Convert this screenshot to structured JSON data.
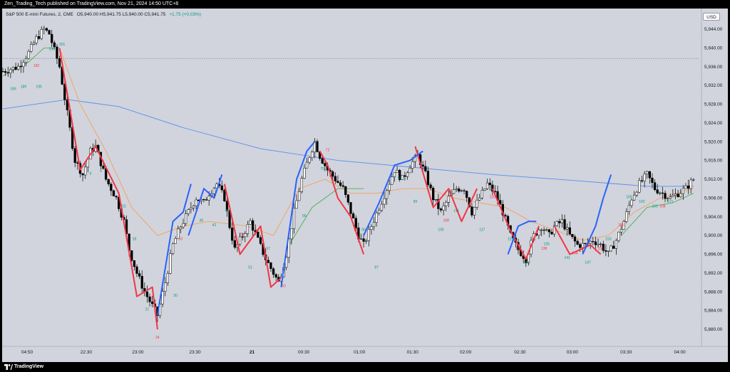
{
  "header": {
    "published": "Zen_Trading_Tech published on TradingView.com, Nov 21, 2024 14:50 UTC+8"
  },
  "symbol": {
    "name": "S&P 500 E-mini Futures, 2, CME",
    "open": "O5,940.00",
    "high": "H5,941.75",
    "low": "L5,940.00",
    "close": "C5,941.75",
    "change": "+1.75 (+0.03%)"
  },
  "currency": "USD",
  "footer": {
    "brand": "TradingView"
  },
  "colors": {
    "up": "#ffffff",
    "down": "#000000",
    "ema_long": "#5b8cf0",
    "ema_mid": "#f5a05a",
    "ema_short": "#4caf50",
    "zig_up": "#2962ff",
    "zig_down": "#f23645",
    "label_green": "#089981",
    "label_red": "#f23645"
  },
  "chart_data": {
    "type": "candlestick",
    "title": "",
    "xlabel": "",
    "ylabel": "",
    "ylim": [
      5877,
      5947
    ],
    "yticks": [
      "5,944.00",
      "5,940.00",
      "5,936.00",
      "5,932.00",
      "5,928.00",
      "5,924.00",
      "5,920.00",
      "5,916.00",
      "5,912.00",
      "5,908.00",
      "5,904.00",
      "5,900.00",
      "5,896.00",
      "5,892.00",
      "5,888.00",
      "5,884.00",
      "5,880.00"
    ],
    "xticks": [
      "04:50",
      "22:30",
      "23:00",
      "23:30",
      "21",
      "00:30",
      "01:00",
      "01:30",
      "02:00",
      "02:30",
      "03:00",
      "03:30",
      "04:00"
    ],
    "dotted_level": 5937.75,
    "close_path": [
      [
        0,
        5935
      ],
      [
        6,
        5936
      ],
      [
        10,
        5939
      ],
      [
        13,
        5942
      ],
      [
        16,
        5944
      ],
      [
        18,
        5943
      ],
      [
        22,
        5936
      ],
      [
        25,
        5926
      ],
      [
        28,
        5916
      ],
      [
        31,
        5913
      ],
      [
        34,
        5918
      ],
      [
        36,
        5919
      ],
      [
        40,
        5912
      ],
      [
        44,
        5908
      ],
      [
        47,
        5903
      ],
      [
        49,
        5897
      ],
      [
        52,
        5892
      ],
      [
        55,
        5888
      ],
      [
        58,
        5885
      ],
      [
        60,
        5883
      ],
      [
        63,
        5890
      ],
      [
        66,
        5898
      ],
      [
        69,
        5902
      ],
      [
        72,
        5905
      ],
      [
        75,
        5908
      ],
      [
        78,
        5907
      ],
      [
        80,
        5909
      ],
      [
        83,
        5911
      ],
      [
        86,
        5908
      ],
      [
        88,
        5902
      ],
      [
        90,
        5897
      ],
      [
        93,
        5900
      ],
      [
        96,
        5903
      ],
      [
        99,
        5899
      ],
      [
        102,
        5895
      ],
      [
        105,
        5892
      ],
      [
        107,
        5890
      ],
      [
        110,
        5896
      ],
      [
        113,
        5905
      ],
      [
        116,
        5912
      ],
      [
        119,
        5917
      ],
      [
        121,
        5920
      ],
      [
        123,
        5917
      ],
      [
        126,
        5914
      ],
      [
        129,
        5912
      ],
      [
        132,
        5910
      ],
      [
        135,
        5905
      ],
      [
        138,
        5900
      ],
      [
        140,
        5898
      ],
      [
        143,
        5902
      ],
      [
        146,
        5906
      ],
      [
        149,
        5910
      ],
      [
        152,
        5914
      ],
      [
        155,
        5912
      ],
      [
        158,
        5915
      ],
      [
        161,
        5917
      ],
      [
        164,
        5913
      ],
      [
        167,
        5908
      ],
      [
        170,
        5905
      ],
      [
        173,
        5908
      ],
      [
        176,
        5910
      ],
      [
        179,
        5910
      ],
      [
        182,
        5905
      ],
      [
        185,
        5908
      ],
      [
        188,
        5911
      ],
      [
        191,
        5909
      ],
      [
        194,
        5905
      ],
      [
        197,
        5900
      ],
      [
        200,
        5897
      ],
      [
        203,
        5895
      ],
      [
        206,
        5900
      ],
      [
        209,
        5902
      ],
      [
        212,
        5900
      ],
      [
        214,
        5902
      ],
      [
        217,
        5903
      ],
      [
        220,
        5900
      ],
      [
        223,
        5898
      ],
      [
        226,
        5898
      ],
      [
        229,
        5899
      ],
      [
        232,
        5898
      ],
      [
        235,
        5896
      ],
      [
        238,
        5899
      ],
      [
        241,
        5903
      ],
      [
        244,
        5908
      ],
      [
        247,
        5911
      ],
      [
        250,
        5913
      ],
      [
        253,
        5910
      ],
      [
        256,
        5909
      ],
      [
        259,
        5908
      ],
      [
        262,
        5909
      ],
      [
        265,
        5910
      ],
      [
        268,
        5912
      ]
    ],
    "series": [
      {
        "name": "",
        "values": [
          [
            0,
            5927
          ],
          [
            25,
            5929
          ],
          [
            45,
            5927.5
          ],
          [
            70,
            5923
          ],
          [
            100,
            5918.5
          ],
          [
            130,
            5916
          ],
          [
            160,
            5914.5
          ],
          [
            190,
            5913
          ],
          [
            220,
            5911.8
          ],
          [
            250,
            5910.5
          ],
          [
            268,
            5910.5
          ]
        ]
      },
      {
        "name": "",
        "values": [
          [
            22,
            5940
          ],
          [
            30,
            5928
          ],
          [
            40,
            5918
          ],
          [
            50,
            5906
          ],
          [
            60,
            5900
          ],
          [
            70,
            5902
          ],
          [
            80,
            5903
          ],
          [
            95,
            5902
          ],
          [
            105,
            5900
          ],
          [
            115,
            5910
          ],
          [
            125,
            5912
          ],
          [
            135,
            5909
          ],
          [
            145,
            5909
          ],
          [
            155,
            5910
          ],
          [
            165,
            5910
          ],
          [
            175,
            5908
          ],
          [
            185,
            5907
          ],
          [
            195,
            5906
          ],
          [
            205,
            5903
          ],
          [
            215,
            5901
          ],
          [
            225,
            5899
          ],
          [
            235,
            5900
          ],
          [
            245,
            5905
          ],
          [
            255,
            5908
          ],
          [
            268,
            5910
          ]
        ]
      },
      {
        "name": "",
        "values": [
          [
            0,
            5934
          ],
          [
            10,
            5937
          ],
          [
            16,
            5940
          ],
          [
            20,
            5940
          ]
        ]
      },
      {
        "name": "",
        "values": [
          [
            110,
            5897
          ],
          [
            120,
            5906
          ],
          [
            130,
            5910
          ],
          [
            140,
            5910
          ]
        ]
      },
      {
        "name": "",
        "values": [
          [
            240,
            5900
          ],
          [
            250,
            5906
          ],
          [
            260,
            5907
          ],
          [
            268,
            5909
          ]
        ]
      }
    ],
    "zigzag_down": [
      [
        [
          22,
          5940
        ],
        [
          30,
          5914
        ],
        [
          36,
          5919
        ],
        [
          45,
          5909
        ],
        [
          52,
          5887
        ],
        [
          58,
          5889
        ],
        [
          60,
          5880
        ]
      ],
      [
        [
          86,
          5911
        ],
        [
          92,
          5896
        ],
        [
          100,
          5902
        ],
        [
          104,
          5889
        ],
        [
          108,
          5891
        ]
      ],
      [
        [
          123,
          5918
        ],
        [
          126,
          5915
        ],
        [
          130,
          5908
        ],
        [
          135,
          5904
        ],
        [
          140,
          5896
        ]
      ],
      [
        [
          160,
          5919
        ],
        [
          167,
          5906
        ],
        [
          173,
          5910
        ],
        [
          178,
          5903
        ],
        [
          184,
          5910
        ]
      ],
      [
        [
          190,
          5910
        ],
        [
          197,
          5901
        ],
        [
          203,
          5895
        ],
        [
          208,
          5902
        ]
      ],
      [
        [
          214,
          5902
        ],
        [
          220,
          5896
        ],
        [
          228,
          5898
        ],
        [
          232,
          5896
        ]
      ]
    ],
    "zigzag_up": [
      [
        [
          60,
          5883
        ],
        [
          66,
          5903
        ],
        [
          70,
          5905
        ],
        [
          73,
          5911
        ]
      ],
      [
        [
          72,
          5900
        ],
        [
          78,
          5910
        ],
        [
          82,
          5908
        ],
        [
          85,
          5913
        ]
      ],
      [
        [
          108,
          5889
        ],
        [
          114,
          5912
        ],
        [
          118,
          5918
        ],
        [
          121,
          5920
        ]
      ],
      [
        [
          140,
          5900
        ],
        [
          146,
          5907
        ],
        [
          152,
          5915
        ],
        [
          158,
          5916
        ],
        [
          163,
          5918
        ]
      ],
      [
        [
          196,
          5896
        ],
        [
          200,
          5902
        ],
        [
          204,
          5903
        ],
        [
          207,
          5903
        ]
      ],
      [
        [
          225,
          5896
        ],
        [
          230,
          5902
        ],
        [
          233,
          5908
        ],
        [
          236,
          5913
        ]
      ]
    ],
    "labels_green": [
      {
        "x": 4,
        "y": 5931,
        "text": "186"
      },
      {
        "x": 8,
        "y": 5931.5,
        "text": "189"
      },
      {
        "x": 14,
        "y": 5931.5,
        "text": "195"
      },
      {
        "x": 19,
        "y": 5939.5,
        "text": "196"
      },
      {
        "x": 23,
        "y": 5940.5,
        "text": "201"
      },
      {
        "x": 34,
        "y": 5913,
        "text": "4"
      },
      {
        "x": 38,
        "y": 5913.5,
        "text": "9"
      },
      {
        "x": 47,
        "y": 5906,
        "text": "15"
      },
      {
        "x": 51,
        "y": 5899,
        "text": "18"
      },
      {
        "x": 56,
        "y": 5884,
        "text": "21"
      },
      {
        "x": 67,
        "y": 5887,
        "text": "30"
      },
      {
        "x": 77,
        "y": 5903,
        "text": "36"
      },
      {
        "x": 82,
        "y": 5902,
        "text": "42"
      },
      {
        "x": 87,
        "y": 5905,
        "text": "45"
      },
      {
        "x": 96,
        "y": 5893,
        "text": "51"
      },
      {
        "x": 103,
        "y": 5897,
        "text": "57"
      },
      {
        "x": 117,
        "y": 5904,
        "text": "66"
      },
      {
        "x": 124,
        "y": 5914,
        "text": "75"
      },
      {
        "x": 145,
        "y": 5893,
        "text": "87"
      },
      {
        "x": 140,
        "y": 5901,
        "text": "90"
      },
      {
        "x": 154,
        "y": 5912,
        "text": "93"
      },
      {
        "x": 160,
        "y": 5907,
        "text": "99"
      },
      {
        "x": 170,
        "y": 5901,
        "text": "105"
      },
      {
        "x": 176,
        "y": 5905,
        "text": "111"
      },
      {
        "x": 186,
        "y": 5901,
        "text": "117"
      },
      {
        "x": 197,
        "y": 5899,
        "text": "123"
      },
      {
        "x": 203,
        "y": 5894,
        "text": "129"
      },
      {
        "x": 211,
        "y": 5898,
        "text": "135"
      },
      {
        "x": 219,
        "y": 5895,
        "text": "141"
      },
      {
        "x": 227,
        "y": 5894,
        "text": "147"
      },
      {
        "x": 235,
        "y": 5899,
        "text": "153"
      },
      {
        "x": 243,
        "y": 5908,
        "text": "159"
      },
      {
        "x": 248,
        "y": 5907,
        "text": "162"
      },
      {
        "x": 253,
        "y": 5906,
        "text": "165"
      },
      {
        "x": 259,
        "y": 5907,
        "text": "171"
      }
    ],
    "labels_red": [
      {
        "x": 13,
        "y": 5936,
        "text": "192"
      },
      {
        "x": 38,
        "y": 5916,
        "text": "7"
      },
      {
        "x": 60,
        "y": 5878,
        "text": "24"
      },
      {
        "x": 69,
        "y": 5899,
        "text": "33"
      },
      {
        "x": 93,
        "y": 5900,
        "text": "54"
      },
      {
        "x": 109,
        "y": 5889,
        "text": "63"
      },
      {
        "x": 126,
        "y": 5918,
        "text": "72"
      },
      {
        "x": 137,
        "y": 5901,
        "text": "84"
      },
      {
        "x": 172,
        "y": 5903,
        "text": "108"
      },
      {
        "x": 190,
        "y": 5908,
        "text": "120"
      },
      {
        "x": 200,
        "y": 5897,
        "text": "132"
      },
      {
        "x": 210,
        "y": 5897,
        "text": "138"
      },
      {
        "x": 222,
        "y": 5896,
        "text": "144"
      },
      {
        "x": 232,
        "y": 5897,
        "text": "150"
      },
      {
        "x": 240,
        "y": 5902,
        "text": "156"
      },
      {
        "x": 256,
        "y": 5906,
        "text": "168"
      }
    ]
  }
}
